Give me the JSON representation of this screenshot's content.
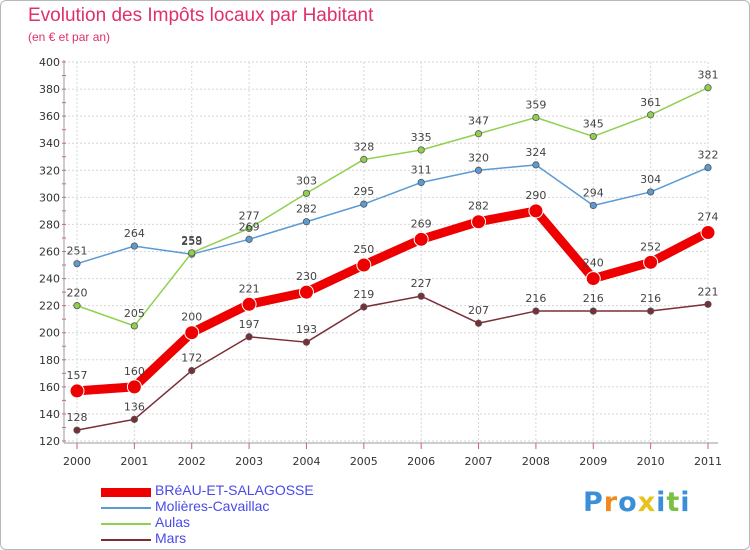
{
  "chart_data": {
    "type": "line",
    "title": "Evolution des Impôts locaux par Habitant",
    "subtitle": "(en € et par an)",
    "xlabel": "",
    "ylabel": "",
    "ylim": [
      120,
      400
    ],
    "yticks": [
      120,
      140,
      160,
      180,
      200,
      220,
      240,
      260,
      280,
      300,
      320,
      340,
      360,
      380,
      400
    ],
    "categories": [
      "2000",
      "2001",
      "2002",
      "2003",
      "2004",
      "2005",
      "2006",
      "2007",
      "2008",
      "2009",
      "2010",
      "2011"
    ],
    "grid": true,
    "series": [
      {
        "name": "Molières-Cavaillac",
        "color": "#5b9bd5",
        "values": [
          251,
          264,
          258,
          269,
          282,
          295,
          311,
          320,
          324,
          294,
          304,
          322
        ]
      },
      {
        "name": "Aulas",
        "color": "#8fd14f",
        "values": [
          220,
          205,
          259,
          277,
          303,
          328,
          335,
          347,
          359,
          345,
          361,
          381
        ]
      },
      {
        "name": "Mars",
        "color": "#7a2e36",
        "values": [
          128,
          136,
          172,
          197,
          193,
          219,
          227,
          207,
          216,
          216,
          216,
          221
        ]
      },
      {
        "name": "BRéAU-ET-SALAGOSSE",
        "color": "#ee0000",
        "values": [
          157,
          160,
          200,
          221,
          230,
          250,
          269,
          282,
          290,
          240,
          252,
          274
        ]
      }
    ]
  },
  "legend": {
    "items": [
      {
        "label": "BRéAU-ET-SALAGOSSE",
        "color": "#ee0000"
      },
      {
        "label": "Molières-Cavaillac",
        "color": "#5b9bd5"
      },
      {
        "label": "Aulas",
        "color": "#8fd14f"
      },
      {
        "label": "Mars",
        "color": "#7a2e36"
      }
    ]
  },
  "brand": {
    "letters": [
      "P",
      "r",
      "o",
      "x",
      "i",
      "t",
      "i"
    ],
    "colors": [
      "#3a8fd8",
      "#f08a1c",
      "#3a8fd8",
      "#e8c21b",
      "#3a8fd8",
      "#7ac143",
      "#3a8fd8"
    ]
  }
}
